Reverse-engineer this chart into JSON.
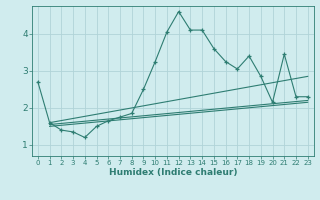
{
  "xlabel": "Humidex (Indice chaleur)",
  "bg_color": "#d0ecee",
  "line_color": "#2e7d72",
  "grid_color": "#b0d4d8",
  "xlim": [
    -0.5,
    23.5
  ],
  "ylim": [
    0.7,
    4.75
  ],
  "xticks": [
    0,
    1,
    2,
    3,
    4,
    5,
    6,
    7,
    8,
    9,
    10,
    11,
    12,
    13,
    14,
    15,
    16,
    17,
    18,
    19,
    20,
    21,
    22,
    23
  ],
  "yticks": [
    1,
    2,
    3,
    4
  ],
  "series": {
    "main": {
      "x": [
        0,
        1,
        2,
        3,
        4,
        5,
        6,
        7,
        8,
        9,
        10,
        11,
        12,
        13,
        14,
        15,
        16,
        17,
        18,
        19,
        20,
        21,
        22,
        23
      ],
      "y": [
        2.7,
        1.6,
        1.4,
        1.35,
        1.2,
        1.5,
        1.65,
        1.75,
        1.85,
        2.5,
        3.25,
        4.05,
        4.6,
        4.1,
        4.1,
        3.6,
        3.25,
        3.05,
        3.4,
        2.85,
        2.15,
        3.45,
        2.3,
        2.3
      ]
    },
    "trend1": {
      "x": [
        1,
        23
      ],
      "y": [
        1.6,
        2.85
      ]
    },
    "trend2": {
      "x": [
        1,
        23
      ],
      "y": [
        1.55,
        2.2
      ]
    },
    "trend3": {
      "x": [
        1,
        23
      ],
      "y": [
        1.5,
        2.15
      ]
    }
  }
}
